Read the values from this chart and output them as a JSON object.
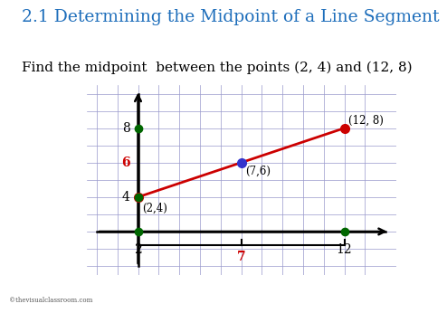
{
  "title": "2.1 Determining the Midpoint of a Line Segment",
  "subtitle": "Find the midpoint  between the points (2, 4) and (12, 8)",
  "title_color": "#1E6EBB",
  "title_fontsize": 13.5,
  "subtitle_fontsize": 11,
  "background_color": "#ffffff",
  "point1": [
    2,
    4
  ],
  "point2": [
    12,
    8
  ],
  "midpoint": [
    7,
    6
  ],
  "point_color_red": "#CC0000",
  "point_color_blue": "#3333CC",
  "point_color_green": "#006600",
  "line_color": "#CC0000",
  "grid_color": "#9999CC",
  "axis_color": "#000000",
  "xlim": [
    -0.5,
    14.5
  ],
  "ylim": [
    -0.5,
    10.5
  ],
  "label_6_color": "#CC0000",
  "label_7_color": "#CC0000",
  "copyright": "©thevisualclassroom.com"
}
